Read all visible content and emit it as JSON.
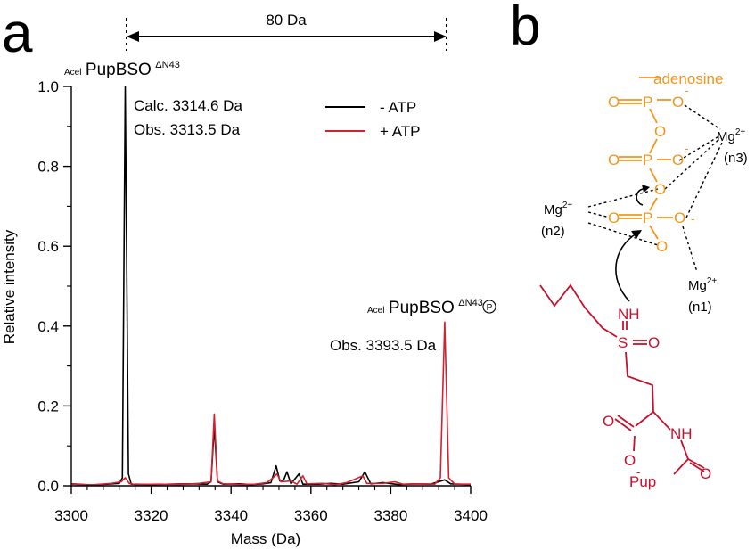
{
  "panels": {
    "a": "a",
    "b": "b"
  },
  "chart_data": {
    "type": "line",
    "xlabel": "Mass (Da)",
    "ylabel": "Relative intensity",
    "xlim": [
      3300,
      3400
    ],
    "ylim": [
      0,
      1.0
    ],
    "x_ticks": [
      3300,
      3320,
      3340,
      3360,
      3380,
      3400
    ],
    "y_ticks": [
      "0.0",
      "0.2",
      "0.4",
      "0.6",
      "0.8",
      "1.0"
    ],
    "legend": {
      "placement": "top-right",
      "entries": [
        "- ATP",
        "+ ATP"
      ]
    },
    "series": [
      {
        "name": "- ATP",
        "color": "#000000",
        "points": [
          [
            3300,
            0.005
          ],
          [
            3305,
            0.002
          ],
          [
            3309,
            0.004
          ],
          [
            3312,
            0.006
          ],
          [
            3312.8,
            0.02
          ],
          [
            3313.5,
            1.0
          ],
          [
            3314.3,
            0.03
          ],
          [
            3315,
            0.004
          ],
          [
            3320,
            0.003
          ],
          [
            3325,
            0.004
          ],
          [
            3330,
            0.005
          ],
          [
            3334,
            0.004
          ],
          [
            3335,
            0.01
          ],
          [
            3335.8,
            0.15
          ],
          [
            3336.6,
            0.01
          ],
          [
            3338,
            0.004
          ],
          [
            3342,
            0.005
          ],
          [
            3345,
            0.003
          ],
          [
            3348,
            0.005
          ],
          [
            3350,
            0.008
          ],
          [
            3351.3,
            0.05
          ],
          [
            3352.2,
            0.012
          ],
          [
            3353.2,
            0.015
          ],
          [
            3354,
            0.035
          ],
          [
            3355,
            0.005
          ],
          [
            3357,
            0.03
          ],
          [
            3358,
            0.004
          ],
          [
            3362,
            0.004
          ],
          [
            3365,
            0.006
          ],
          [
            3368,
            0.004
          ],
          [
            3372,
            0.01
          ],
          [
            3373.5,
            0.035
          ],
          [
            3375,
            0.005
          ],
          [
            3378,
            0.008
          ],
          [
            3382,
            0.003
          ],
          [
            3386,
            0.005
          ],
          [
            3390,
            0.004
          ],
          [
            3393.5,
            0.015
          ],
          [
            3395,
            0.005
          ],
          [
            3400,
            0.003
          ]
        ]
      },
      {
        "name": "+ ATP",
        "color": "#d4202f",
        "points": [
          [
            3300,
            0.004
          ],
          [
            3305,
            0.002
          ],
          [
            3310,
            0.006
          ],
          [
            3312.5,
            0.01
          ],
          [
            3313.5,
            0.02
          ],
          [
            3314.5,
            0.006
          ],
          [
            3316,
            0.003
          ],
          [
            3322,
            0.004
          ],
          [
            3327,
            0.003
          ],
          [
            3332,
            0.006
          ],
          [
            3335,
            0.01
          ],
          [
            3335.8,
            0.18
          ],
          [
            3336.6,
            0.012
          ],
          [
            3338,
            0.005
          ],
          [
            3343,
            0.003
          ],
          [
            3346,
            0.004
          ],
          [
            3349,
            0.008
          ],
          [
            3350.5,
            0.02
          ],
          [
            3351.5,
            0.03
          ],
          [
            3352.5,
            0.01
          ],
          [
            3355,
            0.012
          ],
          [
            3356.5,
            0.004
          ],
          [
            3358,
            0.025
          ],
          [
            3359,
            0.005
          ],
          [
            3363,
            0.006
          ],
          [
            3366,
            0.003
          ],
          [
            3369,
            0.008
          ],
          [
            3373,
            0.025
          ],
          [
            3374,
            0.006
          ],
          [
            3378,
            0.006
          ],
          [
            3381,
            0.01
          ],
          [
            3383,
            0.004
          ],
          [
            3387,
            0.005
          ],
          [
            3391,
            0.004
          ],
          [
            3392.4,
            0.02
          ],
          [
            3393.5,
            0.41
          ],
          [
            3394.5,
            0.02
          ],
          [
            3396,
            0.004
          ],
          [
            3400,
            0.004
          ]
        ]
      }
    ],
    "annotations": {
      "span_label": "80 Da",
      "peak1_prefix": "Acel",
      "peak1_name": "PupBSO",
      "peak1_sup": "ΔN43",
      "peak1_calc": "Calc. 3314.6 Da",
      "peak1_obs": "Obs. 3313.5 Da",
      "peak2_prefix": "Acel",
      "peak2_name": "PupBSO",
      "peak2_sup": "ΔN43",
      "peak2_mark": "P",
      "peak2_obs": "Obs. 3393.5 Da"
    }
  },
  "scheme": {
    "colors": {
      "orange": "#f0961e",
      "red": "#c8102e",
      "black": "#000000"
    },
    "adenosine": "adenosine",
    "O": "O",
    "P": "P",
    "minus": "-",
    "mg": "Mg",
    "mg_charge": "2+",
    "n1": "(n1)",
    "n2": "(n2)",
    "n3": "(n3)",
    "NH": "NH",
    "S": "S",
    "pup": "Pup"
  }
}
